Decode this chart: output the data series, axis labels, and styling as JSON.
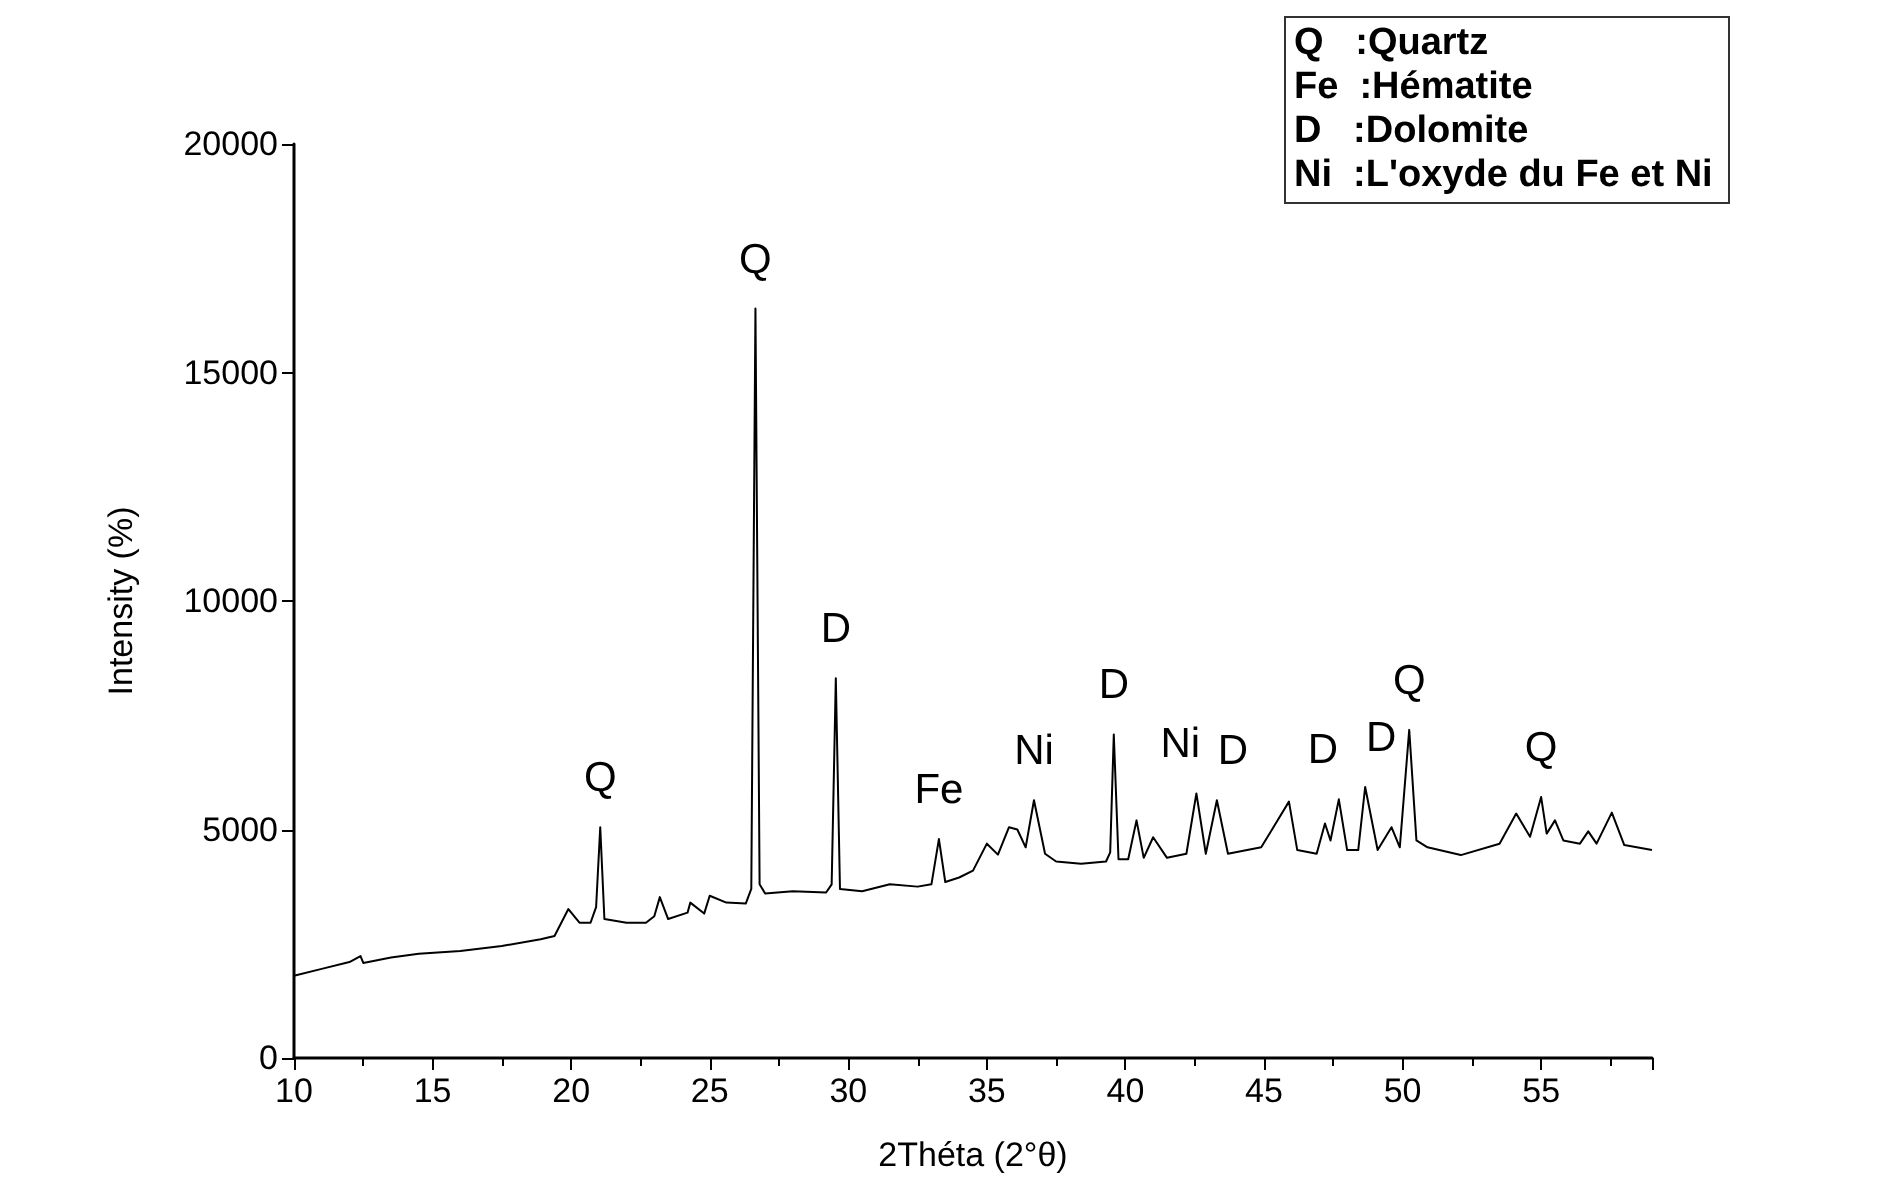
{
  "chart_data": {
    "type": "line",
    "xlabel": "2Théta (2°θ)",
    "ylabel": "Intensity (%)",
    "xlim": [
      10,
      59
    ],
    "xticks": [
      10,
      15,
      20,
      25,
      30,
      35,
      40,
      45,
      50,
      55
    ],
    "ylim": [
      0,
      20000
    ],
    "yticks": [
      0,
      5000,
      10000,
      15000,
      20000
    ],
    "grid": false,
    "marker": "none",
    "line_style": "solid",
    "series": [
      {
        "color": "#000000",
        "x": [
          10.0,
          11.0,
          12.0,
          12.4,
          12.5,
          13.5,
          14.5,
          16.0,
          17.5,
          18.9,
          19.4,
          19.9,
          20.3,
          20.7,
          20.9,
          21.05,
          21.2,
          22.0,
          22.7,
          23.0,
          23.2,
          23.5,
          24.2,
          24.3,
          24.8,
          25.0,
          25.6,
          26.3,
          26.5,
          26.65,
          26.8,
          27.0,
          28.0,
          29.2,
          29.4,
          29.55,
          29.7,
          30.5,
          31.5,
          32.5,
          33.0,
          33.27,
          33.5,
          34.0,
          34.5,
          35.0,
          35.4,
          35.8,
          36.1,
          36.4,
          36.7,
          37.1,
          37.5,
          38.4,
          39.3,
          39.45,
          39.58,
          39.75,
          40.1,
          40.4,
          40.66,
          41.0,
          41.5,
          42.2,
          42.56,
          42.9,
          43.3,
          43.7,
          44.9,
          45.9,
          46.2,
          46.9,
          47.2,
          47.4,
          47.7,
          48.0,
          48.4,
          48.65,
          49.1,
          49.6,
          49.9,
          50.24,
          50.5,
          50.9,
          52.1,
          53.5,
          54.1,
          54.6,
          55.0,
          55.2,
          55.5,
          55.8,
          56.4,
          56.7,
          57.0,
          57.55,
          58.0,
          59.0
        ],
        "values": [
          1800,
          1950,
          2100,
          2230,
          2080,
          2200,
          2280,
          2340,
          2450,
          2600,
          2670,
          3260,
          2960,
          2960,
          3300,
          5050,
          3040,
          2960,
          2960,
          3100,
          3520,
          3040,
          3180,
          3400,
          3160,
          3550,
          3400,
          3380,
          3700,
          16400,
          3800,
          3600,
          3650,
          3620,
          3800,
          8310,
          3700,
          3650,
          3800,
          3750,
          3800,
          4790,
          3850,
          3950,
          4100,
          4690,
          4450,
          5050,
          5000,
          4610,
          5640,
          4470,
          4300,
          4250,
          4300,
          4500,
          7080,
          4350,
          4350,
          5200,
          4380,
          4830,
          4380,
          4470,
          5790,
          4470,
          5640,
          4470,
          4610,
          5610,
          4550,
          4470,
          5130,
          4760,
          5660,
          4550,
          4550,
          5930,
          4550,
          5050,
          4610,
          7180,
          4760,
          4610,
          4440,
          4690,
          5350,
          4840,
          5710,
          4910,
          5200,
          4760,
          4690,
          4960,
          4690,
          5370,
          4660,
          4550
        ]
      }
    ],
    "annotations": [
      {
        "text": "Q",
        "x": 21.05,
        "y": 5050
      },
      {
        "text": "Q",
        "x": 26.65,
        "y": 16400
      },
      {
        "text": "D",
        "x": 29.55,
        "y": 8310
      },
      {
        "text": "Fe",
        "x": 33.27,
        "y": 4790
      },
      {
        "text": "Ni",
        "x": 36.7,
        "y": 5640
      },
      {
        "text": "D",
        "x": 39.58,
        "y": 7080
      },
      {
        "text": "Ni",
        "x": 42.56,
        "y": 5790
      },
      {
        "text": "D",
        "x": 43.3,
        "y": 5640
      },
      {
        "text": "D",
        "x": 47.7,
        "y": 5660
      },
      {
        "text": "D",
        "x": 48.65,
        "y": 5930
      },
      {
        "text": "Q",
        "x": 50.24,
        "y": 7180
      },
      {
        "text": "Q",
        "x": 55.0,
        "y": 5710
      },
      "Q   :Quartz",
      "Fe  :Hématite",
      "D   :Dolomite",
      "Ni  :L'oxyde du Fe et Ni"
    ]
  }
}
